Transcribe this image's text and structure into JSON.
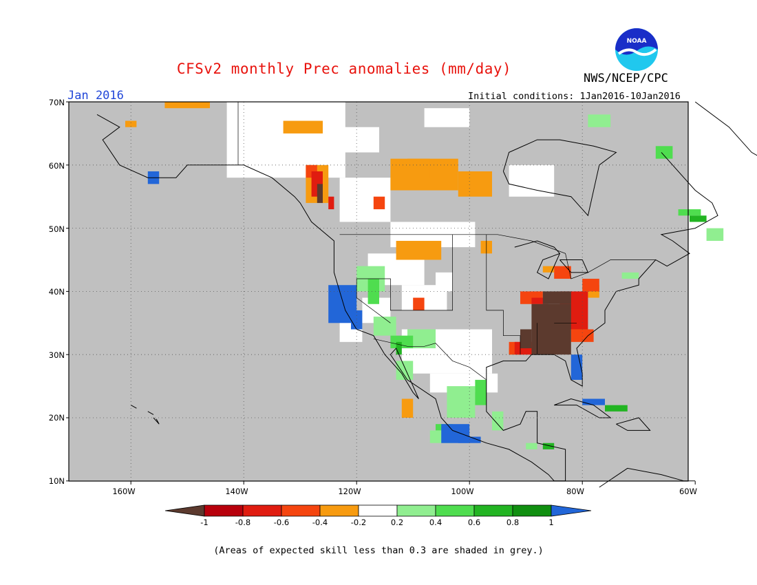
{
  "title": "CFSv2 monthly Prec anomalies (mm/day)",
  "organization": "NWS/NCEP/CPC",
  "logo_text": "NOAA",
  "valid_month": "Jan 2016",
  "initial_conditions": "Initial conditions: 1Jan2016-10Jan2016",
  "lat_labels": [
    "70N",
    "60N",
    "50N",
    "40N",
    "30N",
    "20N",
    "10N"
  ],
  "lon_labels": [
    "160W",
    "140W",
    "120W",
    "100W",
    "80W",
    "60W"
  ],
  "colorbar": {
    "labels": [
      "-1",
      "-0.8",
      "-0.6",
      "-0.4",
      "-0.2",
      "0.2",
      "0.4",
      "0.6",
      "0.8",
      "1"
    ],
    "colors": [
      "#5c3a2e",
      "#b8000c",
      "#e01c10",
      "#f5450f",
      "#f79b10",
      "#ffffff",
      "#90ee90",
      "#4fdd4f",
      "#22b422",
      "#108f10",
      "#2266d8"
    ]
  },
  "skill_mask_color": "#c0c0c0",
  "note": "(Areas of expected skill less than 0.3 are shaded in grey.)"
}
